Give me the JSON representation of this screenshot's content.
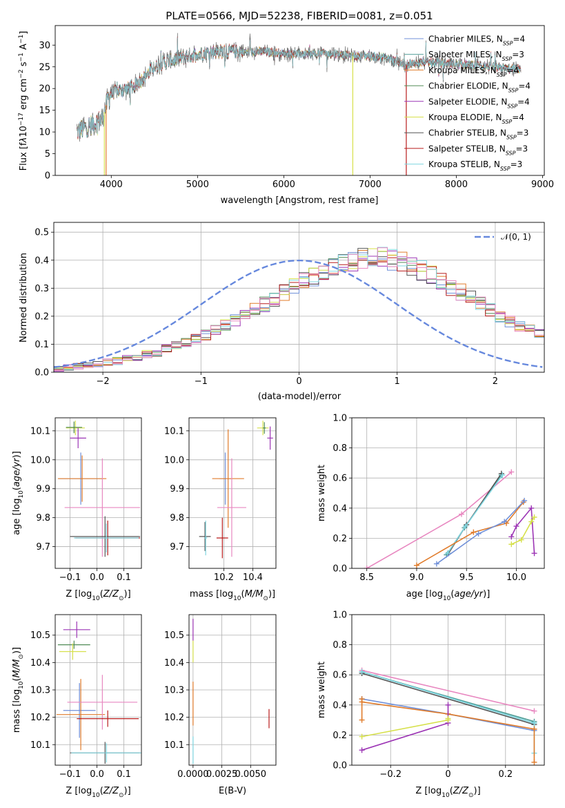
{
  "chart_data": [
    {
      "id": "spectrum",
      "type": "line",
      "title": "PLATE=0566, MJD=52238, FIBERID=0081, z=0.051",
      "xlabel": "wavelength [Angstrom, rest frame]",
      "ylabel_html": "Flux [f<tspan font-style='italic'>λ</tspan>10<tspan baseline-shift='super' font-size='9'>−17</tspan> erg cm<tspan baseline-shift='super' font-size='9'>−2</tspan> s<tspan baseline-shift='super' font-size='9'>−1</tspan> A<tspan baseline-shift='super' font-size='9'>−1</tspan>]",
      "xlim": [
        3350,
        9020
      ],
      "ylim": [
        0,
        34.5
      ],
      "xticks": [
        4000,
        5000,
        6000,
        7000,
        8000,
        9000
      ],
      "yticks": [
        0,
        5,
        10,
        15,
        20,
        25,
        30
      ],
      "legend": "top-right",
      "series": [
        {
          "name": "Chabrier MILES",
          "nssp": 4,
          "color": "#6f8fd8"
        },
        {
          "name": "Salpeter MILES",
          "nssp": 3,
          "color": "#4f9c95"
        },
        {
          "name": "Kroupa MILES",
          "nssp": 4,
          "color": "#e07b2a"
        },
        {
          "name": "Chabrier ELODIE",
          "nssp": 4,
          "color": "#4f8a55"
        },
        {
          "name": "Salpeter ELODIE",
          "nssp": 4,
          "color": "#9c35b5"
        },
        {
          "name": "Kroupa ELODIE",
          "nssp": 4,
          "color": "#d6e04a"
        },
        {
          "name": "Chabrier STELIB",
          "nssp": 3,
          "color": "#555555"
        },
        {
          "name": "Salpeter STELIB",
          "nssp": 3,
          "color": "#b81b1b"
        },
        {
          "name": "Kroupa STELIB",
          "nssp": 3,
          "color": "#7fd6e0"
        }
      ],
      "continuum": {
        "x": [
          3600,
          3700,
          3800,
          3900,
          3950,
          4000,
          4100,
          4200,
          4300,
          4400,
          4500,
          4600,
          4700,
          4800,
          4900,
          5000,
          5200,
          5400,
          5600,
          5800,
          6000,
          6200,
          6400,
          6600,
          6800,
          7000,
          7200,
          7400,
          7600,
          7800,
          8000,
          8200,
          8400,
          8600,
          8750
        ],
        "y": [
          10,
          11,
          12,
          13,
          17,
          19,
          19.5,
          20,
          21,
          23,
          25,
          26,
          26.5,
          27,
          27.5,
          28,
          28.5,
          28.5,
          28.5,
          28.5,
          28,
          28,
          28,
          28,
          27.5,
          27.5,
          27,
          25.5,
          26,
          26,
          25.5,
          25.5,
          25,
          24.5,
          24.5
        ]
      },
      "dropouts": [
        3920,
        3940,
        6800,
        7420
      ]
    },
    {
      "id": "residual-hist",
      "type": "bar",
      "xlabel": "(data-model)/error",
      "ylabel": "Normed distribution",
      "xlim": [
        -2.5,
        2.5
      ],
      "ylim": [
        0,
        0.535
      ],
      "xticks": [
        -2,
        -1,
        0,
        1,
        2
      ],
      "yticks": [
        0.0,
        0.1,
        0.2,
        0.3,
        0.4,
        0.5
      ],
      "grid": true,
      "bin_width": 0.1,
      "reference_curve": {
        "label": "N(0,1)",
        "color": "#6688dd",
        "style": "dashed"
      },
      "legend": "top-right",
      "base_values": [
        0.015,
        0.018,
        0.022,
        0.026,
        0.03,
        0.035,
        0.04,
        0.047,
        0.055,
        0.063,
        0.072,
        0.082,
        0.094,
        0.106,
        0.12,
        0.134,
        0.15,
        0.166,
        0.184,
        0.202,
        0.222,
        0.242,
        0.262,
        0.283,
        0.303,
        0.323,
        0.342,
        0.36,
        0.376,
        0.39,
        0.4,
        0.407,
        0.41,
        0.408,
        0.402,
        0.392,
        0.379,
        0.363,
        0.345,
        0.326,
        0.305,
        0.285,
        0.264,
        0.243,
        0.223,
        0.203,
        0.184,
        0.166,
        0.149,
        0.133,
        0.118
      ],
      "series_colors": [
        "#6f8fd8",
        "#e07b2a",
        "#4f8a55",
        "#9c35b5",
        "#d6e04a",
        "#555555",
        "#b81b1b",
        "#7fd6e0",
        "#e887c0"
      ]
    },
    {
      "id": "age-vs-z",
      "type": "scatter",
      "xlabel": "Z [log10(Z/Z☉)]",
      "ylabel": "age  [log10(age/yr)]",
      "xlim": [
        -0.155,
        0.165
      ],
      "ylim": [
        9.625,
        10.145
      ],
      "xticks": [
        -0.1,
        0.0,
        0.1
      ],
      "yticks": [
        9.7,
        9.8,
        9.9,
        10.0,
        10.1
      ],
      "grid": true,
      "points": [
        {
          "x": -0.08,
          "y": 10.11,
          "xe": 0.035,
          "ye": 0.025,
          "c": "#d6e04a"
        },
        {
          "x": -0.085,
          "y": 10.112,
          "xe": 0.03,
          "ye": 0.02,
          "c": "#4f8a55"
        },
        {
          "x": -0.07,
          "y": 10.075,
          "xe": 0.03,
          "ye": 0.035,
          "c": "#9c35b5"
        },
        {
          "x": -0.06,
          "y": 9.935,
          "xe": 0.08,
          "ye": 0.09,
          "c": "#6f8fd8"
        },
        {
          "x": -0.055,
          "y": 9.935,
          "xe": 0.09,
          "ye": 0.08,
          "c": "#e07b2a"
        },
        {
          "x": 0.02,
          "y": 9.835,
          "xe": 0.14,
          "ye": 0.17,
          "c": "#e887c0"
        },
        {
          "x": 0.04,
          "y": 9.73,
          "xe": 0.12,
          "ye": 0.06,
          "c": "#b81b1b"
        },
        {
          "x": 0.03,
          "y": 9.735,
          "xe": 0.13,
          "ye": 0.07,
          "c": "#555555"
        },
        {
          "x": 0.035,
          "y": 9.73,
          "xe": 0.12,
          "ye": 0.05,
          "c": "#7fd6e0"
        }
      ]
    },
    {
      "id": "age-vs-mass",
      "type": "scatter",
      "xlabel": "mass [log10(M/M☉)]",
      "xlim": [
        9.96,
        10.56
      ],
      "ylim": [
        9.625,
        10.145
      ],
      "xticks": [
        10.2,
        10.4
      ],
      "yticks": [
        9.7,
        9.8,
        9.9,
        10.0,
        10.1
      ],
      "grid": true,
      "points": [
        {
          "x": 10.47,
          "y": 10.11,
          "xe": 0.04,
          "ye": 0.025,
          "c": "#d6e04a"
        },
        {
          "x": 10.48,
          "y": 10.11,
          "xe": 0.01,
          "ye": 0.02,
          "c": "#4f8a55"
        },
        {
          "x": 10.52,
          "y": 10.075,
          "xe": 0.02,
          "ye": 0.04,
          "c": "#9c35b5"
        },
        {
          "x": 10.21,
          "y": 9.935,
          "xe": 0.04,
          "ye": 0.09,
          "c": "#6f8fd8"
        },
        {
          "x": 10.23,
          "y": 9.935,
          "xe": 0.11,
          "ye": 0.17,
          "c": "#e07b2a"
        },
        {
          "x": 10.255,
          "y": 9.835,
          "xe": 0.1,
          "ye": 0.17,
          "c": "#e887c0"
        },
        {
          "x": 10.19,
          "y": 9.73,
          "xe": 0.04,
          "ye": 0.07,
          "c": "#b81b1b"
        },
        {
          "x": 10.07,
          "y": 9.735,
          "xe": 0.04,
          "ye": 0.05,
          "c": "#555555"
        },
        {
          "x": 10.075,
          "y": 9.73,
          "xe": 0.01,
          "ye": 0.06,
          "c": "#7fd6e0"
        }
      ]
    },
    {
      "id": "massweight-vs-age",
      "type": "line",
      "xlabel": "age  [log10(age/yr)]",
      "ylabel": "mass weight",
      "xlim": [
        8.35,
        10.28
      ],
      "ylim": [
        0.0,
        1.0
      ],
      "xticks": [
        8.5,
        9.0,
        9.5,
        10.0
      ],
      "yticks": [
        0.0,
        0.2,
        0.4,
        0.6,
        0.8,
        1.0
      ],
      "grid": true,
      "series": [
        {
          "c": "#e887c0",
          "x": [
            8.5,
            9.45,
            9.95
          ],
          "y": [
            0.0,
            0.36,
            0.64
          ]
        },
        {
          "c": "#4f9c95",
          "x": [
            9.3,
            9.48,
            9.85
          ],
          "y": [
            0.09,
            0.27,
            0.62
          ]
        },
        {
          "c": "#555555",
          "x": [
            9.32,
            9.5,
            9.85
          ],
          "y": [
            0.1,
            0.29,
            0.63
          ]
        },
        {
          "c": "#7fd6e0",
          "x": [
            9.31,
            9.49,
            9.86
          ],
          "y": [
            0.1,
            0.28,
            0.62
          ]
        },
        {
          "c": "#e07b2a",
          "x": [
            9.0,
            9.57,
            9.9,
            10.07
          ],
          "y": [
            0.02,
            0.24,
            0.3,
            0.44
          ]
        },
        {
          "c": "#6f8fd8",
          "x": [
            9.2,
            9.62,
            9.88,
            10.08
          ],
          "y": [
            0.03,
            0.23,
            0.31,
            0.45
          ]
        },
        {
          "c": "#9c35b5",
          "x": [
            9.95,
            10.0,
            10.15,
            10.18
          ],
          "y": [
            0.21,
            0.28,
            0.4,
            0.1
          ]
        },
        {
          "c": "#d6e04a",
          "x": [
            9.95,
            10.05,
            10.15,
            10.18
          ],
          "y": [
            0.16,
            0.19,
            0.31,
            0.34
          ]
        }
      ]
    },
    {
      "id": "mass-vs-z",
      "type": "scatter",
      "xlabel": "Z [log10(Z/Z☉)]",
      "ylabel": "mass [log10(M/M☉)]",
      "xlim": [
        -0.155,
        0.165
      ],
      "ylim": [
        10.025,
        10.575
      ],
      "xticks": [
        -0.1,
        0.0,
        0.1
      ],
      "yticks": [
        10.1,
        10.2,
        10.3,
        10.4,
        10.5
      ],
      "grid": true,
      "points": [
        {
          "x": -0.075,
          "y": 10.52,
          "xe": 0.05,
          "ye": 0.03,
          "c": "#9c35b5"
        },
        {
          "x": -0.085,
          "y": 10.465,
          "xe": 0.06,
          "ye": 0.015,
          "c": "#4f8a55"
        },
        {
          "x": -0.09,
          "y": 10.44,
          "xe": 0.05,
          "ye": 0.03,
          "c": "#d6e04a"
        },
        {
          "x": -0.065,
          "y": 10.225,
          "xe": 0.06,
          "ye": 0.1,
          "c": "#6f8fd8"
        },
        {
          "x": -0.06,
          "y": 10.21,
          "xe": 0.09,
          "ye": 0.13,
          "c": "#e07b2a"
        },
        {
          "x": 0.02,
          "y": 10.255,
          "xe": 0.13,
          "ye": 0.1,
          "c": "#e887c0"
        },
        {
          "x": 0.04,
          "y": 10.195,
          "xe": 0.115,
          "ye": 0.03,
          "c": "#b81b1b"
        },
        {
          "x": 0.03,
          "y": 10.07,
          "xe": 0.13,
          "ye": 0.04,
          "c": "#555555"
        },
        {
          "x": 0.035,
          "y": 10.07,
          "xe": 0.13,
          "ye": 0.035,
          "c": "#7fd6e0"
        }
      ]
    },
    {
      "id": "mass-vs-ebv",
      "type": "scatter",
      "xlabel": "E(B-V)",
      "xlim": [
        -0.00035,
        0.0072
      ],
      "ylim": [
        10.025,
        10.575
      ],
      "xticks": [
        0.0,
        0.0025,
        0.005
      ],
      "xticklabels": [
        "0.0000",
        "0.0025",
        "0.0050"
      ],
      "yticks": [
        10.1,
        10.2,
        10.3,
        10.4,
        10.5
      ],
      "grid": true,
      "points": [
        {
          "x": 0.0,
          "y": 10.52,
          "xe": 0,
          "ye": 0.04,
          "c": "#9c35b5"
        },
        {
          "x": 0.0,
          "y": 10.44,
          "xe": 0,
          "ye": 0.04,
          "c": "#d6e04a"
        },
        {
          "x": 0.0,
          "y": 10.25,
          "xe": 0,
          "ye": 0.08,
          "c": "#e07b2a"
        },
        {
          "x": 0.0,
          "y": 10.08,
          "xe": 0,
          "ye": 0.05,
          "c": "#7fd6e0"
        },
        {
          "x": 0.0066,
          "y": 10.195,
          "xe": 0,
          "ye": 0.035,
          "c": "#b81b1b"
        }
      ]
    },
    {
      "id": "massweight-vs-z",
      "type": "line",
      "xlabel": "Z [log10(Z/Z☉)]",
      "ylabel": "mass weight",
      "xlim": [
        -0.335,
        0.335
      ],
      "ylim": [
        0.0,
        1.0
      ],
      "xticks": [
        -0.2,
        0.0,
        0.2
      ],
      "yticks": [
        0.0,
        0.2,
        0.4,
        0.6,
        0.8,
        1.0
      ],
      "grid": true,
      "series": [
        {
          "c": "#e887c0",
          "x": [
            -0.3,
            0.3
          ],
          "y": [
            0.63,
            0.36
          ]
        },
        {
          "c": "#4f9c95",
          "x": [
            -0.3,
            0.3
          ],
          "y": [
            0.62,
            0.29
          ]
        },
        {
          "c": "#555555",
          "x": [
            -0.3,
            0.3
          ],
          "y": [
            0.61,
            0.27
          ]
        },
        {
          "c": "#7fd6e0",
          "x": [
            -0.3,
            0.3
          ],
          "y": [
            0.62,
            0.28
          ]
        },
        {
          "c": "#6f8fd8",
          "x": [
            -0.3,
            0.0,
            0.3
          ],
          "y": [
            0.44,
            0.34,
            0.23
          ]
        },
        {
          "c": "#e07b2a",
          "x": [
            -0.3,
            0.0,
            0.3
          ],
          "y": [
            0.42,
            0.34,
            0.24
          ]
        },
        {
          "c": "#9c35b5",
          "x": [
            -0.3,
            0.0,
            0.0
          ],
          "y": [
            0.1,
            0.28,
            0.4
          ]
        },
        {
          "c": "#d6e04a",
          "x": [
            -0.3,
            0.0,
            0.0
          ],
          "y": [
            0.19,
            0.3,
            0.31
          ]
        },
        {
          "c": "#e07b2a",
          "x": [
            -0.3,
            -0.3
          ],
          "y": [
            0.44,
            0.3
          ]
        },
        {
          "c": "#7fd6e0",
          "x": [
            0.3,
            0.3
          ],
          "y": [
            0.28,
            0.08
          ]
        },
        {
          "c": "#e07b2a",
          "x": [
            0.3,
            0.3
          ],
          "y": [
            0.24,
            0.02
          ]
        }
      ]
    }
  ]
}
